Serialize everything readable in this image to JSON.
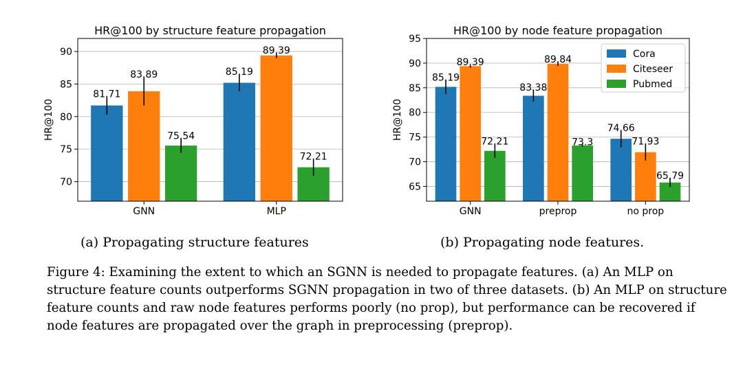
{
  "colors": {
    "Cora": "#1f77b4",
    "Citeseer": "#ff7f0e",
    "Pubmed": "#2ca02c"
  },
  "chart_data": [
    {
      "type": "bar",
      "title": "HR@100 by structure feature propagation",
      "ylabel": "HR@100",
      "xlabel": "",
      "ylim": [
        67,
        92
      ],
      "yticks": [
        70,
        75,
        80,
        85,
        90
      ],
      "categories": [
        "GNN",
        "MLP"
      ],
      "grid": true,
      "legend": "none",
      "series": [
        {
          "key": "Cora",
          "values": [
            81.71,
            85.19
          ],
          "errors": [
            1.4,
            1.3
          ],
          "labels": [
            "81.71",
            "85.19"
          ]
        },
        {
          "key": "Citeseer",
          "values": [
            83.89,
            89.39
          ],
          "errors": [
            2.2,
            0.4
          ],
          "labels": [
            "83.89",
            "89.39"
          ]
        },
        {
          "key": "Pubmed",
          "values": [
            75.54,
            72.21
          ],
          "errors": [
            1.1,
            1.3
          ],
          "labels": [
            "75.54",
            "72.21"
          ]
        }
      ]
    },
    {
      "type": "bar",
      "title": "HR@100 by node feature propagation",
      "ylabel": "HR@100",
      "xlabel": "",
      "ylim": [
        62,
        95
      ],
      "yticks": [
        65,
        70,
        75,
        80,
        85,
        90,
        95
      ],
      "categories": [
        "GNN",
        "preprop",
        "no prop"
      ],
      "grid": true,
      "legend": "top-right",
      "series": [
        {
          "name": "Cora",
          "key": "Cora",
          "values": [
            85.19,
            83.38,
            74.66
          ],
          "errors": [
            1.4,
            1.2,
            1.7
          ],
          "labels": [
            "85.19",
            "83.38",
            "74.66"
          ]
        },
        {
          "name": "Citeseer",
          "key": "Citeseer",
          "values": [
            89.39,
            89.84,
            71.93
          ],
          "errors": [
            0.3,
            0.4,
            1.7
          ],
          "labels": [
            "89.39",
            "89.84",
            "71.93"
          ]
        },
        {
          "name": "Pubmed",
          "key": "Pubmed",
          "values": [
            72.21,
            73.3,
            65.79
          ],
          "errors": [
            1.4,
            0.2,
            0.9
          ],
          "labels": [
            "72.21",
            "73.3",
            "65.79"
          ]
        }
      ]
    }
  ],
  "captions": {
    "sub_a": "(a) Propagating structure features",
    "sub_b": "(b) Propagating node features.",
    "figure": "Figure 4: Examining the extent to which an SGNN is needed to propagate features. (a) An MLP on structure feature counts outperforms SGNN propagation in two of three datasets. (b) An MLP on structure feature counts and raw node features performs poorly (no prop), but performance can be recovered if node features are propagated over the graph in preprocessing (preprop)."
  }
}
